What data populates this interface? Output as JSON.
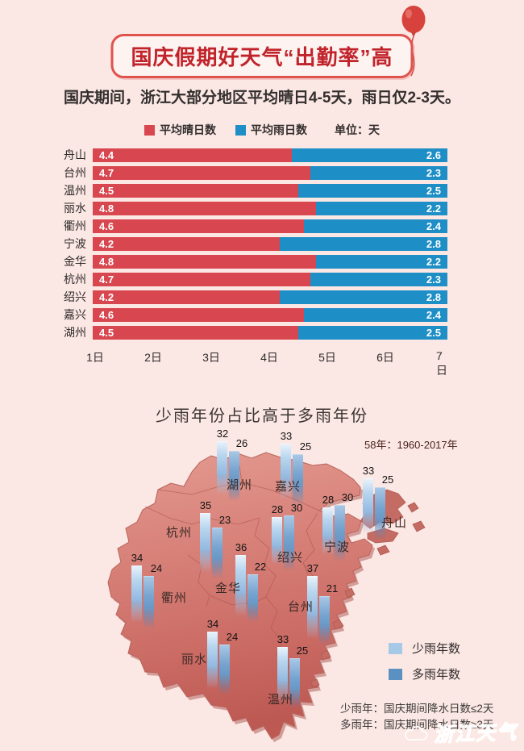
{
  "header": {
    "title": "国庆假期好天气“出勤率”高"
  },
  "subtitle": "国庆期间，浙江大部分地区平均晴日4-5天，雨日仅2-3天。",
  "legend1": {
    "sunny_label": "平均晴日数",
    "rainy_label": "平均雨日数",
    "unit_label": "单位：天",
    "sunny_color": "#d8464f",
    "rainy_color": "#1e8ec7"
  },
  "chart": {
    "rows": [
      {
        "city": "舟山",
        "sunny": 4.4,
        "rainy": 2.6
      },
      {
        "city": "台州",
        "sunny": 4.7,
        "rainy": 2.3
      },
      {
        "city": "温州",
        "sunny": 4.5,
        "rainy": 2.5
      },
      {
        "city": "丽水",
        "sunny": 4.8,
        "rainy": 2.2
      },
      {
        "city": "衢州",
        "sunny": 4.6,
        "rainy": 2.4
      },
      {
        "city": "宁波",
        "sunny": 4.2,
        "rainy": 2.8
      },
      {
        "city": "金华",
        "sunny": 4.8,
        "rainy": 2.2
      },
      {
        "city": "杭州",
        "sunny": 4.7,
        "rainy": 2.3
      },
      {
        "city": "绍兴",
        "sunny": 4.2,
        "rainy": 2.8
      },
      {
        "city": "嘉兴",
        "sunny": 4.6,
        "rainy": 2.4
      },
      {
        "city": "湖州",
        "sunny": 4.5,
        "rainy": 2.5
      }
    ],
    "axis": [
      "1日",
      "2日",
      "3日",
      "4日",
      "5日",
      "6日",
      "7日"
    ]
  },
  "map_section": {
    "title": "少雨年份占比高于多雨年份",
    "period_note": "58年：1960-2017年",
    "cities": [
      {
        "name": "湖州",
        "low": 32,
        "high": 26
      },
      {
        "name": "嘉兴",
        "low": 33,
        "high": 25
      },
      {
        "name": "舟山",
        "low": 33,
        "high": 25
      },
      {
        "name": "杭州",
        "low": 35,
        "high": 23
      },
      {
        "name": "绍兴",
        "low": 28,
        "high": 30
      },
      {
        "name": "宁波",
        "low": 28,
        "high": 30
      },
      {
        "name": "衢州",
        "low": 34,
        "high": 24
      },
      {
        "name": "金华",
        "low": 36,
        "high": 22
      },
      {
        "name": "台州",
        "low": 37,
        "high": 21
      },
      {
        "name": "丽水",
        "low": 34,
        "high": 24
      },
      {
        "name": "温州",
        "low": 33,
        "high": 25
      }
    ],
    "legend": {
      "low_label": "少雨年数",
      "high_label": "多雨年数",
      "low_color": "#a6c9e8",
      "high_color": "#5b90c2"
    },
    "notes": [
      "少雨年：国庆期间降水日数≤2天",
      "多雨年：国庆期间降水日数≥3天"
    ]
  },
  "watermark": "浙江天气",
  "chart_data": [
    {
      "type": "bar",
      "subtype": "horizontal-stacked",
      "title": "国庆期间，浙江大部分地区平均晴日4-5天，雨日仅2-3天。",
      "categories": [
        "舟山",
        "台州",
        "温州",
        "丽水",
        "衢州",
        "宁波",
        "金华",
        "杭州",
        "绍兴",
        "嘉兴",
        "湖州"
      ],
      "series": [
        {
          "name": "平均晴日数",
          "values": [
            4.4,
            4.7,
            4.5,
            4.8,
            4.6,
            4.2,
            4.8,
            4.7,
            4.2,
            4.6,
            4.5
          ],
          "color": "#d8464f"
        },
        {
          "name": "平均雨日数",
          "values": [
            2.6,
            2.3,
            2.5,
            2.2,
            2.4,
            2.8,
            2.2,
            2.3,
            2.8,
            2.4,
            2.5
          ],
          "color": "#1e8ec7"
        }
      ],
      "unit": "天",
      "x_ticks": [
        "1日",
        "2日",
        "3日",
        "4日",
        "5日",
        "6日",
        "7日"
      ],
      "xlim": [
        0,
        7
      ],
      "legend_position": "top",
      "grid": false
    },
    {
      "type": "bar",
      "subtype": "3d-columns-on-map",
      "title": "少雨年份占比高于多雨年份",
      "annotation": "58年：1960-2017年",
      "categories": [
        "湖州",
        "嘉兴",
        "舟山",
        "杭州",
        "绍兴",
        "宁波",
        "衢州",
        "金华",
        "台州",
        "丽水",
        "温州"
      ],
      "series": [
        {
          "name": "少雨年数",
          "values": [
            32,
            33,
            33,
            35,
            28,
            28,
            34,
            36,
            37,
            34,
            33
          ],
          "color": "#a6c9e8"
        },
        {
          "name": "多雨年数",
          "values": [
            26,
            25,
            25,
            23,
            30,
            30,
            24,
            22,
            21,
            24,
            25
          ],
          "color": "#5b90c2"
        }
      ],
      "legend_position": "bottom-right",
      "notes": [
        "少雨年：国庆期间降水日数≤2天",
        "多雨年：国庆期间降水日数≥3天"
      ]
    }
  ]
}
